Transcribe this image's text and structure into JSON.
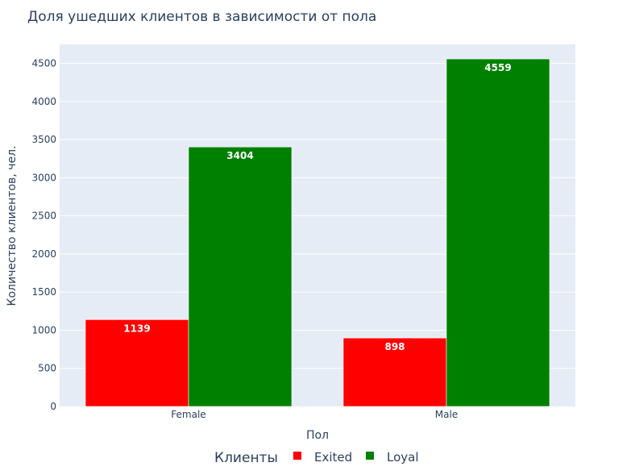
{
  "chart_data": {
    "type": "bar",
    "title": "Доля ушедших клиентов в зависимости от пола",
    "xlabel": "Пол",
    "ylabel": "Количество клиентов, чел.",
    "categories": [
      "Female",
      "Male"
    ],
    "series": [
      {
        "name": "Exited",
        "values": [
          1139,
          898
        ],
        "color": "#ff0000"
      },
      {
        "name": "Loyal",
        "values": [
          3404,
          4559
        ],
        "color": "#008000"
      }
    ],
    "ylim": [
      0,
      4750
    ],
    "yticks": [
      0,
      500,
      1000,
      1500,
      2000,
      2500,
      3000,
      3500,
      4000,
      4500
    ],
    "grid": true,
    "legend": {
      "title": "Клиенты",
      "placement": "bottom"
    },
    "plot_background": "#e5ecf6"
  }
}
